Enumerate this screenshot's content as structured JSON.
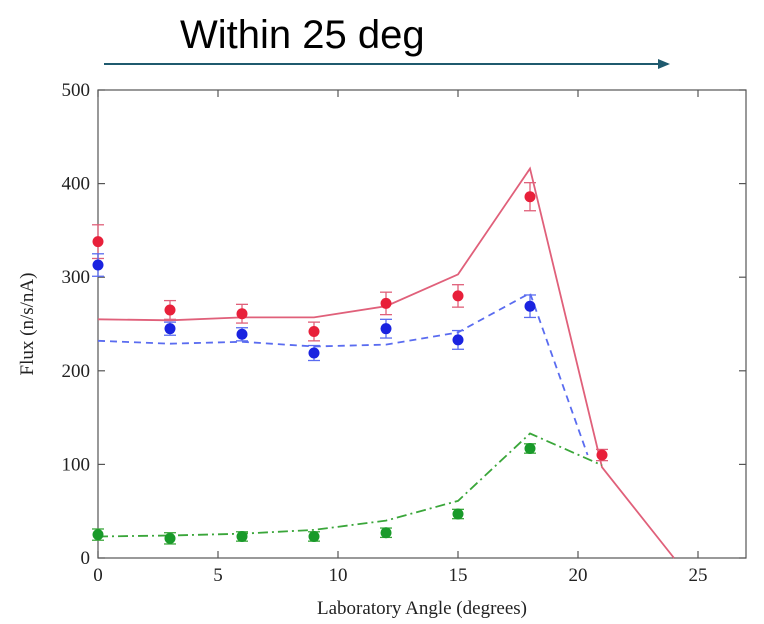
{
  "chart_data": {
    "type": "scatter",
    "annotation": {
      "text": "Within 25 deg",
      "arrow_from_x": 0,
      "arrow_to_x": 24
    },
    "xlabel": "Laboratory Angle (degrees)",
    "ylabel": "Flux (n/s/nA)",
    "xlim": [
      0,
      27
    ],
    "ylim": [
      0,
      500
    ],
    "xticks": [
      0,
      5,
      10,
      15,
      20,
      25
    ],
    "yticks": [
      0,
      100,
      200,
      300,
      400,
      500
    ],
    "grid": false,
    "colors": {
      "red": "#e8203a",
      "blue": "#1a23e0",
      "green": "#199a2a",
      "red_line": "#e0607a",
      "blue_line": "#5a6cf0",
      "green_line": "#3aa63a",
      "arrow": "#1f5a6e"
    },
    "series": [
      {
        "color": "red",
        "points": [
          {
            "x": 0,
            "y": 338,
            "err": 18
          },
          {
            "x": 3,
            "y": 265,
            "err": 10
          },
          {
            "x": 6,
            "y": 261,
            "err": 10
          },
          {
            "x": 9,
            "y": 242,
            "err": 10
          },
          {
            "x": 12,
            "y": 272,
            "err": 12
          },
          {
            "x": 15,
            "y": 280,
            "err": 12
          },
          {
            "x": 18,
            "y": 386,
            "err": 15
          },
          {
            "x": 21,
            "y": 110,
            "err": 6
          }
        ],
        "line_style": "solid",
        "line": [
          {
            "x": 0,
            "y": 255
          },
          {
            "x": 3,
            "y": 254
          },
          {
            "x": 6,
            "y": 257
          },
          {
            "x": 9,
            "y": 257
          },
          {
            "x": 12,
            "y": 269
          },
          {
            "x": 15,
            "y": 303
          },
          {
            "x": 18,
            "y": 416
          },
          {
            "x": 21,
            "y": 97
          },
          {
            "x": 24,
            "y": 0
          }
        ]
      },
      {
        "color": "blue",
        "points": [
          {
            "x": 0,
            "y": 313,
            "err": 12
          },
          {
            "x": 3,
            "y": 245,
            "err": 7
          },
          {
            "x": 6,
            "y": 239,
            "err": 7
          },
          {
            "x": 9,
            "y": 219,
            "err": 8
          },
          {
            "x": 12,
            "y": 245,
            "err": 10
          },
          {
            "x": 15,
            "y": 233,
            "err": 10
          },
          {
            "x": 18,
            "y": 269,
            "err": 12
          }
        ],
        "line_style": "dashed",
        "line": [
          {
            "x": 0,
            "y": 232
          },
          {
            "x": 3,
            "y": 229
          },
          {
            "x": 6,
            "y": 231
          },
          {
            "x": 9,
            "y": 226
          },
          {
            "x": 12,
            "y": 228
          },
          {
            "x": 15,
            "y": 241
          },
          {
            "x": 18,
            "y": 283
          },
          {
            "x": 20.4,
            "y": 110
          }
        ]
      },
      {
        "color": "green",
        "points": [
          {
            "x": 0,
            "y": 25,
            "err": 6
          },
          {
            "x": 3,
            "y": 21,
            "err": 6
          },
          {
            "x": 6,
            "y": 23,
            "err": 5
          },
          {
            "x": 9,
            "y": 23,
            "err": 5
          },
          {
            "x": 12,
            "y": 27,
            "err": 5
          },
          {
            "x": 15,
            "y": 47,
            "err": 5
          },
          {
            "x": 18,
            "y": 117,
            "err": 5
          }
        ],
        "line_style": "dashdot",
        "line": [
          {
            "x": 0,
            "y": 23
          },
          {
            "x": 3,
            "y": 24
          },
          {
            "x": 6,
            "y": 26
          },
          {
            "x": 9,
            "y": 30
          },
          {
            "x": 12,
            "y": 40
          },
          {
            "x": 15,
            "y": 61
          },
          {
            "x": 18,
            "y": 133
          },
          {
            "x": 21,
            "y": 99
          }
        ]
      }
    ]
  }
}
